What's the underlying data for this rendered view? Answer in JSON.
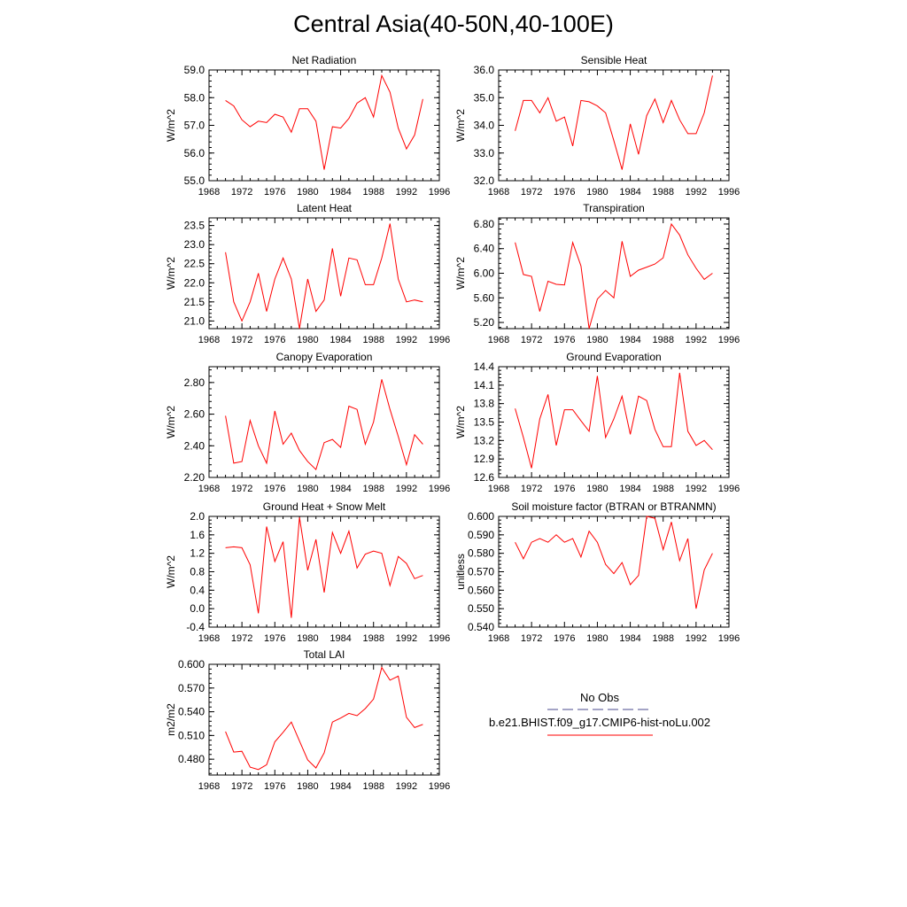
{
  "page_title": "Central Asia(40-50N,40-100E)",
  "legend": {
    "entries": [
      {
        "label": "No Obs",
        "color": "#4a4a8c",
        "dash": true
      },
      {
        "label": "b.e21.BHIST.f09_g17.CMIP6-hist-noLu.002",
        "color": "#ff0000",
        "dash": false
      }
    ]
  },
  "chart_data": [
    {
      "type": "line",
      "title": "Net Radiation",
      "ylabel": "W/m^2",
      "xlim": [
        1968,
        1996
      ],
      "x_ticks": [
        "1968",
        "1972",
        "1976",
        "1980",
        "1984",
        "1988",
        "1992",
        "1996"
      ],
      "ylim": [
        55.0,
        59.0
      ],
      "y_ticks": [
        "55.0",
        "56.0",
        "57.0",
        "58.0",
        "59.0"
      ],
      "series": [
        {
          "color": "#ff0000",
          "x": [
            1970,
            1971,
            1972,
            1973,
            1974,
            1975,
            1976,
            1977,
            1978,
            1979,
            1980,
            1981,
            1982,
            1983,
            1984,
            1985,
            1986,
            1987,
            1988,
            1989,
            1990,
            1991,
            1992,
            1993,
            1994
          ],
          "values": [
            57.9,
            57.7,
            57.2,
            56.95,
            57.15,
            57.1,
            57.4,
            57.3,
            56.75,
            57.6,
            57.6,
            57.15,
            55.4,
            56.95,
            56.9,
            57.25,
            57.8,
            58.0,
            57.3,
            58.8,
            58.2,
            56.9,
            56.15,
            56.65,
            57.95
          ]
        }
      ]
    },
    {
      "type": "line",
      "title": "Sensible Heat",
      "ylabel": "W/m^2",
      "xlim": [
        1968,
        1996
      ],
      "x_ticks": [
        "1968",
        "1972",
        "1976",
        "1980",
        "1984",
        "1988",
        "1992",
        "1996"
      ],
      "ylim": [
        32.0,
        36.0
      ],
      "y_ticks": [
        "32.0",
        "33.0",
        "34.0",
        "35.0",
        "36.0"
      ],
      "series": [
        {
          "color": "#ff0000",
          "x": [
            1970,
            1971,
            1972,
            1973,
            1974,
            1975,
            1976,
            1977,
            1978,
            1979,
            1980,
            1981,
            1982,
            1983,
            1984,
            1985,
            1986,
            1987,
            1988,
            1989,
            1990,
            1991,
            1992,
            1993,
            1994
          ],
          "values": [
            33.8,
            34.9,
            34.9,
            34.45,
            35.0,
            34.15,
            34.3,
            33.25,
            34.9,
            34.85,
            34.7,
            34.45,
            33.45,
            32.4,
            34.05,
            32.95,
            34.35,
            34.95,
            34.1,
            34.9,
            34.2,
            33.7,
            33.7,
            34.45,
            35.8
          ]
        }
      ]
    },
    {
      "type": "line",
      "title": "Latent Heat",
      "ylabel": "W/m^2",
      "xlim": [
        1968,
        1996
      ],
      "x_ticks": [
        "1968",
        "1972",
        "1976",
        "1980",
        "1984",
        "1988",
        "1992",
        "1996"
      ],
      "ylim": [
        20.8,
        23.7
      ],
      "y_ticks": [
        "21.0",
        "21.5",
        "22.0",
        "22.5",
        "23.0",
        "23.5"
      ],
      "series": [
        {
          "color": "#ff0000",
          "x": [
            1970,
            1971,
            1972,
            1973,
            1974,
            1975,
            1976,
            1977,
            1978,
            1979,
            1980,
            1981,
            1982,
            1983,
            1984,
            1985,
            1986,
            1987,
            1988,
            1989,
            1990,
            1991,
            1992,
            1993,
            1994
          ],
          "values": [
            22.8,
            21.5,
            21.0,
            21.5,
            22.25,
            21.25,
            22.1,
            22.65,
            22.1,
            20.8,
            22.1,
            21.25,
            21.55,
            22.9,
            21.65,
            22.65,
            22.6,
            21.95,
            21.95,
            22.65,
            23.55,
            22.1,
            21.5,
            21.55,
            21.5
          ]
        }
      ]
    },
    {
      "type": "line",
      "title": "Transpiration",
      "ylabel": "W/m^2",
      "xlim": [
        1968,
        1996
      ],
      "x_ticks": [
        "1968",
        "1972",
        "1976",
        "1980",
        "1984",
        "1988",
        "1992",
        "1996"
      ],
      "ylim": [
        5.1,
        6.9
      ],
      "y_ticks": [
        "5.20",
        "5.60",
        "6.00",
        "6.40",
        "6.80"
      ],
      "series": [
        {
          "color": "#ff0000",
          "x": [
            1970,
            1971,
            1972,
            1973,
            1974,
            1975,
            1976,
            1977,
            1978,
            1979,
            1980,
            1981,
            1982,
            1983,
            1984,
            1985,
            1986,
            1987,
            1988,
            1989,
            1990,
            1991,
            1992,
            1993,
            1994
          ],
          "values": [
            6.5,
            5.98,
            5.95,
            5.38,
            5.87,
            5.82,
            5.81,
            6.5,
            6.12,
            5.1,
            5.58,
            5.72,
            5.6,
            6.52,
            5.95,
            6.05,
            6.1,
            6.15,
            6.25,
            6.8,
            6.62,
            6.3,
            6.08,
            5.9,
            6.0
          ]
        }
      ]
    },
    {
      "type": "line",
      "title": "Canopy Evaporation",
      "ylabel": "W/m^2",
      "xlim": [
        1968,
        1996
      ],
      "x_ticks": [
        "1968",
        "1972",
        "1976",
        "1980",
        "1984",
        "1988",
        "1992",
        "1996"
      ],
      "ylim": [
        2.2,
        2.9
      ],
      "y_ticks": [
        "2.20",
        "2.40",
        "2.60",
        "2.80"
      ],
      "series": [
        {
          "color": "#ff0000",
          "x": [
            1970,
            1971,
            1972,
            1973,
            1974,
            1975,
            1976,
            1977,
            1978,
            1979,
            1980,
            1981,
            1982,
            1983,
            1984,
            1985,
            1986,
            1987,
            1988,
            1989,
            1990,
            1991,
            1992,
            1993,
            1994
          ],
          "values": [
            2.59,
            2.29,
            2.3,
            2.56,
            2.4,
            2.29,
            2.62,
            2.41,
            2.48,
            2.37,
            2.3,
            2.25,
            2.42,
            2.44,
            2.39,
            2.65,
            2.63,
            2.41,
            2.55,
            2.82,
            2.63,
            2.46,
            2.28,
            2.47,
            2.41
          ]
        }
      ]
    },
    {
      "type": "line",
      "title": "Ground Evaporation",
      "ylabel": "W/m^2",
      "xlim": [
        1968,
        1996
      ],
      "x_ticks": [
        "1968",
        "1972",
        "1976",
        "1980",
        "1984",
        "1988",
        "1992",
        "1996"
      ],
      "ylim": [
        12.6,
        14.4
      ],
      "y_ticks": [
        "12.6",
        "12.9",
        "13.2",
        "13.5",
        "13.8",
        "14.1",
        "14.4"
      ],
      "series": [
        {
          "color": "#ff0000",
          "x": [
            1970,
            1971,
            1972,
            1973,
            1974,
            1975,
            1976,
            1977,
            1978,
            1979,
            1980,
            1981,
            1982,
            1983,
            1984,
            1985,
            1986,
            1987,
            1988,
            1989,
            1990,
            1991,
            1992,
            1993,
            1994
          ],
          "values": [
            13.72,
            13.25,
            12.75,
            13.55,
            13.95,
            13.12,
            13.7,
            13.7,
            13.52,
            13.35,
            14.25,
            13.25,
            13.55,
            13.92,
            13.3,
            13.92,
            13.85,
            13.38,
            13.1,
            13.1,
            14.3,
            13.35,
            13.12,
            13.2,
            13.05
          ]
        }
      ]
    },
    {
      "type": "line",
      "title": "Ground Heat + Snow Melt",
      "ylabel": "W/m^2",
      "xlim": [
        1968,
        1996
      ],
      "x_ticks": [
        "1968",
        "1972",
        "1976",
        "1980",
        "1984",
        "1988",
        "1992",
        "1996"
      ],
      "ylim": [
        -0.4,
        2.0
      ],
      "y_ticks": [
        "-0.4",
        "0.0",
        "0.4",
        "0.8",
        "1.2",
        "1.6",
        "2.0"
      ],
      "series": [
        {
          "color": "#ff0000",
          "x": [
            1970,
            1971,
            1972,
            1973,
            1974,
            1975,
            1976,
            1977,
            1978,
            1979,
            1980,
            1981,
            1982,
            1983,
            1984,
            1985,
            1986,
            1987,
            1988,
            1989,
            1990,
            1991,
            1992,
            1993,
            1994
          ],
          "values": [
            1.32,
            1.34,
            1.32,
            0.95,
            -0.1,
            1.78,
            1.02,
            1.45,
            -0.2,
            1.98,
            0.83,
            1.5,
            0.35,
            1.65,
            1.2,
            1.68,
            0.88,
            1.18,
            1.25,
            1.2,
            0.5,
            1.13,
            0.98,
            0.65,
            0.72
          ]
        }
      ]
    },
    {
      "type": "line",
      "title": "Soil moisture factor (BTRAN or BTRANMN)",
      "ylabel": "unitless",
      "xlim": [
        1968,
        1996
      ],
      "x_ticks": [
        "1968",
        "1972",
        "1976",
        "1980",
        "1984",
        "1988",
        "1992",
        "1996"
      ],
      "ylim": [
        0.54,
        0.6
      ],
      "y_ticks": [
        "0.540",
        "0.550",
        "0.560",
        "0.570",
        "0.580",
        "0.590",
        "0.600"
      ],
      "series": [
        {
          "color": "#ff0000",
          "x": [
            1970,
            1971,
            1972,
            1973,
            1974,
            1975,
            1976,
            1977,
            1978,
            1979,
            1980,
            1981,
            1982,
            1983,
            1984,
            1985,
            1986,
            1987,
            1988,
            1989,
            1990,
            1991,
            1992,
            1993,
            1994
          ],
          "values": [
            0.586,
            0.577,
            0.586,
            0.588,
            0.586,
            0.59,
            0.586,
            0.588,
            0.578,
            0.592,
            0.586,
            0.574,
            0.569,
            0.575,
            0.563,
            0.568,
            0.6,
            0.599,
            0.582,
            0.597,
            0.576,
            0.588,
            0.55,
            0.571,
            0.58
          ]
        }
      ]
    },
    {
      "type": "line",
      "title": "Total LAI",
      "ylabel": "m2/m2",
      "xlim": [
        1968,
        1996
      ],
      "x_ticks": [
        "1968",
        "1972",
        "1976",
        "1980",
        "1984",
        "1988",
        "1992",
        "1996"
      ],
      "ylim": [
        0.46,
        0.6
      ],
      "y_ticks": [
        "0.480",
        "0.510",
        "0.540",
        "0.570",
        "0.600"
      ],
      "series": [
        {
          "color": "#ff0000",
          "x": [
            1970,
            1971,
            1972,
            1973,
            1974,
            1975,
            1976,
            1977,
            1978,
            1979,
            1980,
            1981,
            1982,
            1983,
            1984,
            1985,
            1986,
            1987,
            1988,
            1989,
            1990,
            1991,
            1992,
            1993,
            1994
          ],
          "values": [
            0.515,
            0.489,
            0.49,
            0.47,
            0.467,
            0.473,
            0.502,
            0.514,
            0.527,
            0.503,
            0.479,
            0.469,
            0.488,
            0.527,
            0.532,
            0.538,
            0.535,
            0.544,
            0.556,
            0.596,
            0.58,
            0.585,
            0.533,
            0.52,
            0.524
          ]
        }
      ]
    }
  ]
}
